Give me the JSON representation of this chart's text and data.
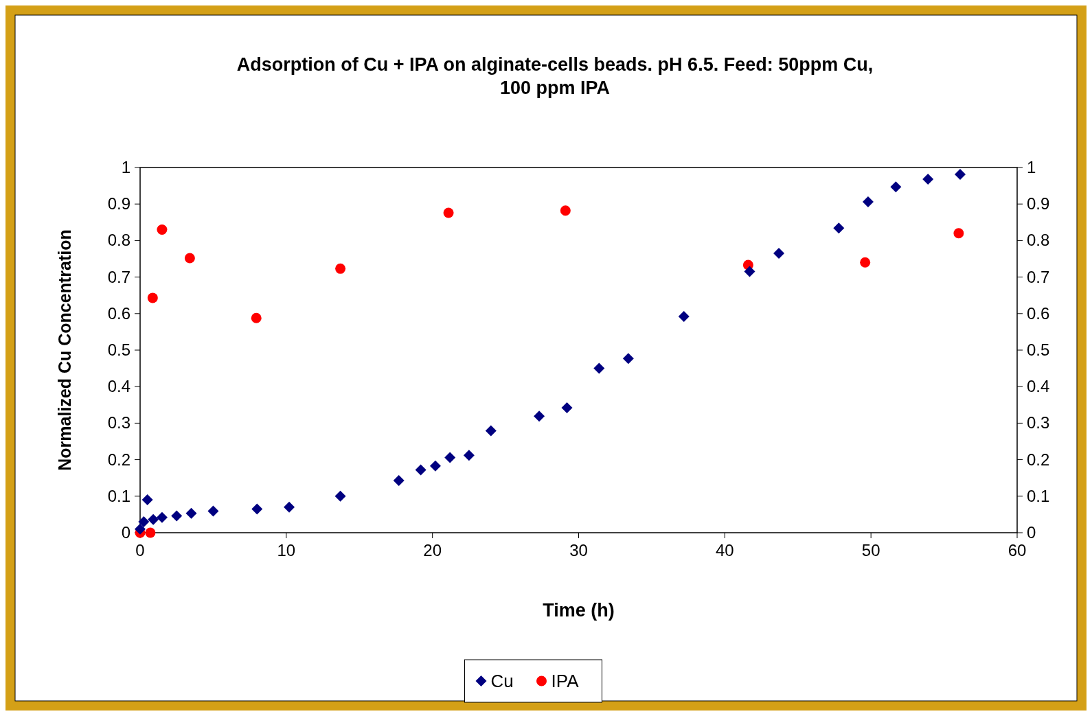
{
  "chart_data": {
    "type": "scatter",
    "title": "Adsorption of Cu + IPA on alginate-cells beads. pH 6.5. Feed: 50ppm Cu, 100 ppm IPA",
    "xlabel": "Time (h)",
    "ylabel": "Normalized Cu Concentration",
    "xlim": [
      0,
      60
    ],
    "xticks": [
      0,
      10,
      20,
      30,
      40,
      50,
      60
    ],
    "ylim": [
      0,
      1
    ],
    "yticks": [
      0,
      0.1,
      0.2,
      0.3,
      0.4,
      0.5,
      0.6,
      0.7,
      0.8,
      0.9,
      1
    ],
    "y2lim": [
      0,
      1
    ],
    "y2ticks": [
      0,
      0.1,
      0.2,
      0.3,
      0.4,
      0.5,
      0.6,
      0.7,
      0.8,
      0.9,
      1
    ],
    "grid": false,
    "legend": "bottom",
    "series": [
      {
        "name": "Cu",
        "color": "#000080",
        "marker": "diamond",
        "x": [
          0,
          0.25,
          0.5,
          0.9,
          1.5,
          2.5,
          3.5,
          5,
          8,
          10.2,
          13.7,
          17.7,
          19.2,
          20.2,
          21.2,
          22.5,
          24,
          27.3,
          29.2,
          31.4,
          33.4,
          37.2,
          41.7,
          43.7,
          47.8,
          49.8,
          51.7,
          53.9,
          56.1
        ],
        "values": [
          0.01,
          0.03,
          0.09,
          0.036,
          0.042,
          0.046,
          0.053,
          0.059,
          0.065,
          0.07,
          0.1,
          0.143,
          0.172,
          0.183,
          0.206,
          0.212,
          0.279,
          0.319,
          0.342,
          0.45,
          0.477,
          0.592,
          0.715,
          0.765,
          0.834,
          0.906,
          0.947,
          0.968,
          0.981
        ]
      },
      {
        "name": "IPA",
        "color": "#ff0000",
        "marker": "circle",
        "x": [
          0,
          0.7,
          0.86,
          1.5,
          3.4,
          7.95,
          13.7,
          21.1,
          29.1,
          41.6,
          49.6,
          56
        ],
        "values": [
          0,
          0,
          0.643,
          0.83,
          0.752,
          0.588,
          0.723,
          0.876,
          0.882,
          0.733,
          0.74,
          0.82
        ]
      }
    ]
  }
}
